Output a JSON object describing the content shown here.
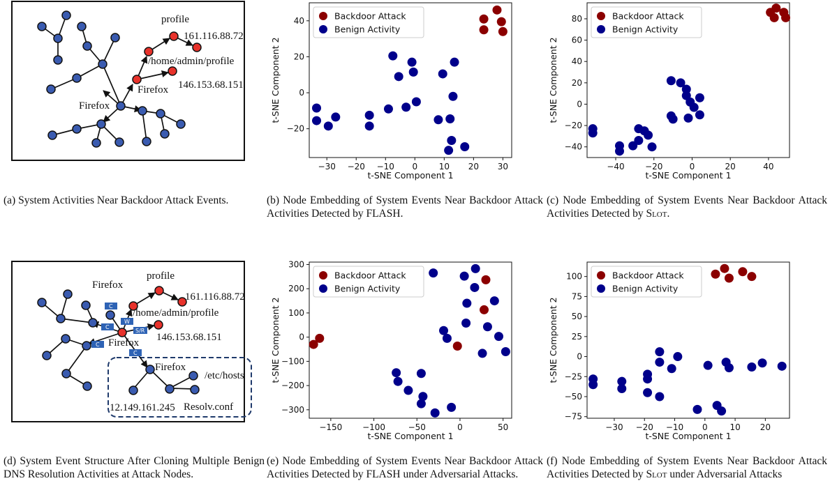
{
  "captions": {
    "a": {
      "label": "(a)",
      "text": "System Activities Near Backdoor Attack Events."
    },
    "b": {
      "label": "(b)",
      "text": "Node Embedding of System Events Near Backdoor Attack Activities Detected by FLASH."
    },
    "c": {
      "label": "(c)",
      "text_pre": "Node Embedding of System Events Near Backdoor Attack Activities Detected by",
      "text_sc": "Slot",
      "text_post": "."
    },
    "d": {
      "label": "(d)",
      "text": "System Event Structure After Cloning Multiple Benign DNS Resolution Activities at Attack Nodes."
    },
    "e": {
      "label": "(e)",
      "text": "Node Embedding of System Events Near Backdoor Attack Activities Detected by FLASH under Adversarial Attacks."
    },
    "f": {
      "label": "(f)",
      "text_pre": "Node Embedding of System Events Near Backdoor Attack Activities Detected by",
      "text_sc": "Slot",
      "text_post": "under Adversarial Attacks"
    }
  },
  "graphs": {
    "a": {
      "labels": {
        "profile": "profile",
        "ip1": "161.116.88.72",
        "path": "/home/admin/profile",
        "ip2": "146.153.68.151",
        "firefox1": "Firefox",
        "firefox2": "Firefox"
      }
    },
    "d": {
      "labels": {
        "profile": "profile",
        "ip1": "161.116.88.72",
        "path": "/home/admin/profile",
        "ip2": "146.153.68.151",
        "firefox_top": "Firefox",
        "firefox_mid": "Firefox",
        "firefox_box": "Firefox",
        "hosts": "/etc/hosts",
        "ip3": "12.149.161.245",
        "resolv": "Resolv.conf"
      },
      "edge_tags": [
        "C",
        "W",
        "C",
        "S/R",
        "C",
        "C"
      ]
    }
  },
  "colors": {
    "attack": "#8b0000",
    "benign": "#00008b",
    "node_blue": "#3a5bb0",
    "node_red": "#e8322b"
  },
  "chart_data": [
    {
      "id": "b",
      "type": "scatter",
      "xlabel": "t-SNE Component 1",
      "ylabel": "t-SNE Component 2",
      "xlim": [
        -36,
        33
      ],
      "ylim": [
        -36,
        50
      ],
      "xticks": [
        -30,
        -20,
        -10,
        0,
        10,
        20,
        30
      ],
      "yticks": [
        -20,
        0,
        20,
        40
      ],
      "legend": "top-left",
      "series": [
        {
          "name": "Backdoor Attack",
          "color": "#8b0000",
          "points": [
            [
              23.5,
              41
            ],
            [
              28,
              46
            ],
            [
              29.5,
              39.5
            ],
            [
              23.5,
              35
            ],
            [
              30,
              34
            ]
          ]
        },
        {
          "name": "Benign Activity",
          "color": "#00008b",
          "points": [
            [
              -7.5,
              20.5
            ],
            [
              -1,
              17
            ],
            [
              -5.5,
              9
            ],
            [
              -0.5,
              11.5
            ],
            [
              9.5,
              10.5
            ],
            [
              13.5,
              17
            ],
            [
              -3,
              -8
            ],
            [
              -9,
              -9
            ],
            [
              0.5,
              -5
            ],
            [
              -15.5,
              -12.5
            ],
            [
              -15.5,
              -18.5
            ],
            [
              -33.5,
              -8.5
            ],
            [
              -33.5,
              -15.5
            ],
            [
              -27,
              -13.5
            ],
            [
              -29.5,
              -18.5
            ],
            [
              8,
              -15
            ],
            [
              12,
              -14.5
            ],
            [
              13,
              -2
            ],
            [
              12.5,
              -26.5
            ],
            [
              17,
              -30
            ],
            [
              11.5,
              -32
            ]
          ]
        }
      ]
    },
    {
      "id": "c",
      "type": "scatter",
      "xlabel": "t-SNE Component 1",
      "ylabel": "t-SNE Component 2",
      "xlim": [
        -55,
        51
      ],
      "ylim": [
        -50,
        95
      ],
      "xticks": [
        -40,
        -20,
        0,
        20,
        40
      ],
      "yticks": [
        -40,
        -20,
        0,
        20,
        40,
        60,
        80
      ],
      "legend": "top-left",
      "series": [
        {
          "name": "Backdoor Attack",
          "color": "#8b0000",
          "points": [
            [
              41,
              86
            ],
            [
              44,
              90
            ],
            [
              48,
              86
            ],
            [
              49,
              81
            ],
            [
              43,
              81
            ]
          ]
        },
        {
          "name": "Benign Activity",
          "color": "#00008b",
          "points": [
            [
              -11,
              22
            ],
            [
              -6,
              20
            ],
            [
              -3,
              14
            ],
            [
              -3,
              8
            ],
            [
              -1,
              2
            ],
            [
              1,
              -3
            ],
            [
              4,
              6
            ],
            [
              4,
              -10
            ],
            [
              -2,
              -13
            ],
            [
              -11,
              -11
            ],
            [
              -10,
              -14
            ],
            [
              -25,
              -25
            ],
            [
              -28,
              -23
            ],
            [
              -23,
              -29
            ],
            [
              -28,
              -34
            ],
            [
              -31,
              -39
            ],
            [
              -21,
              -40
            ],
            [
              -38,
              -39
            ],
            [
              -38,
              -44
            ],
            [
              -52,
              -23
            ],
            [
              -52,
              -27
            ]
          ]
        }
      ]
    },
    {
      "id": "e",
      "type": "scatter",
      "xlabel": "t-SNE Component 1",
      "ylabel": "t-SNE Component 2",
      "xlim": [
        -175,
        60
      ],
      "ylim": [
        -335,
        310
      ],
      "xticks": [
        -150,
        -100,
        -50,
        0,
        50
      ],
      "yticks": [
        -300,
        -200,
        -100,
        0,
        100,
        200,
        300
      ],
      "legend": "top-left",
      "series": [
        {
          "name": "Backdoor Attack",
          "color": "#8b0000",
          "points": [
            [
              -170,
              -30
            ],
            [
              -163,
              -5
            ],
            [
              -3,
              -37
            ],
            [
              30,
              237
            ],
            [
              28,
              113
            ]
          ]
        },
        {
          "name": "Benign Activity",
          "color": "#00008b",
          "points": [
            [
              -31,
              265
            ],
            [
              5,
              252
            ],
            [
              18,
              283
            ],
            [
              17,
              205
            ],
            [
              8,
              140
            ],
            [
              7,
              58
            ],
            [
              32,
              43
            ],
            [
              40,
              150
            ],
            [
              45,
              3
            ],
            [
              53,
              -60
            ],
            [
              26,
              -67
            ],
            [
              -19,
              27
            ],
            [
              -15,
              -5
            ],
            [
              -74,
              -147
            ],
            [
              -72,
              -183
            ],
            [
              -60,
              -220
            ],
            [
              -45,
              -150
            ],
            [
              -43,
              -245
            ],
            [
              -45,
              -275
            ],
            [
              -29,
              -313
            ],
            [
              -10,
              -290
            ]
          ]
        }
      ]
    },
    {
      "id": "f",
      "type": "scatter",
      "xlabel": "t-SNE Component 1",
      "ylabel": "t-SNE Component 2",
      "xlim": [
        -39,
        28
      ],
      "ylim": [
        -77,
        118
      ],
      "xticks": [
        -30,
        -20,
        -10,
        0,
        10,
        20
      ],
      "yticks": [
        -75,
        -50,
        -25,
        0,
        25,
        50,
        75,
        100
      ],
      "legend": "top-left",
      "series": [
        {
          "name": "Backdoor Attack",
          "color": "#8b0000",
          "points": [
            [
              3.5,
              103
            ],
            [
              6.5,
              110
            ],
            [
              8,
              98
            ],
            [
              12.5,
              106
            ],
            [
              15.5,
              100
            ]
          ]
        },
        {
          "name": "Benign Activity",
          "color": "#00008b",
          "points": [
            [
              -15,
              6
            ],
            [
              -15,
              -7
            ],
            [
              -9,
              0
            ],
            [
              -11,
              -15
            ],
            [
              -19,
              -22
            ],
            [
              -19,
              -28
            ],
            [
              -15,
              -50
            ],
            [
              -19,
              -45
            ],
            [
              -27.5,
              -31
            ],
            [
              -27.5,
              -40
            ],
            [
              -37,
              -28
            ],
            [
              -37,
              -35
            ],
            [
              1,
              -11
            ],
            [
              7,
              -7
            ],
            [
              8,
              -14
            ],
            [
              15.5,
              -13
            ],
            [
              19,
              -8
            ],
            [
              25.5,
              -12
            ],
            [
              -2.5,
              -66
            ],
            [
              4,
              -61
            ],
            [
              5.5,
              -68
            ]
          ]
        }
      ]
    }
  ]
}
